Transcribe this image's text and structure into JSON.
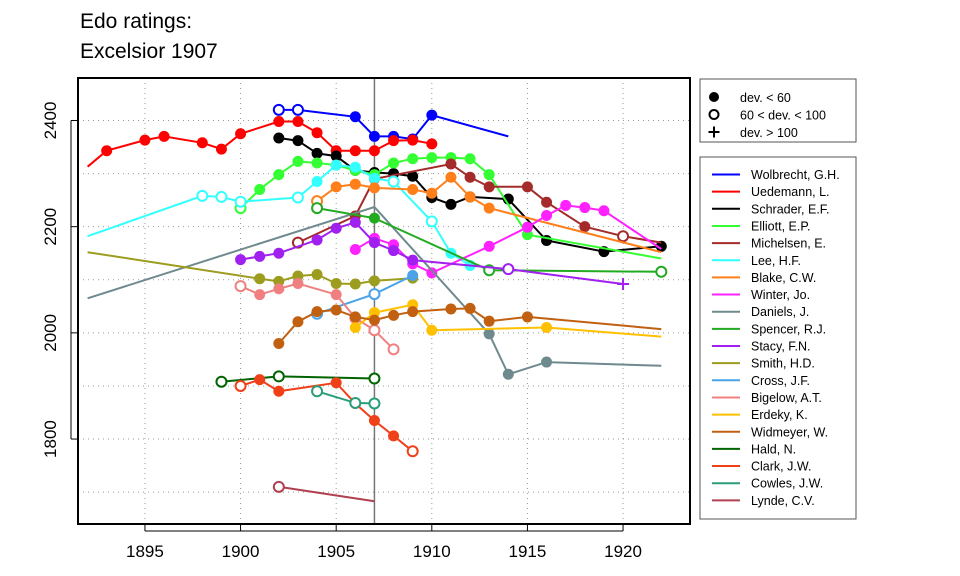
{
  "chart_data": {
    "type": "line",
    "title_lines": [
      "Edo ratings:",
      "Excelsior 1907"
    ],
    "xlabel": "",
    "ylabel": "",
    "xlim": [
      1891.5,
      1923.5
    ],
    "ylim": [
      1640,
      2480
    ],
    "xticks": [
      1895,
      1900,
      1905,
      1910,
      1915,
      1920
    ],
    "yticks": [
      1800,
      2000,
      2200,
      2400
    ],
    "grid": true,
    "vline_x": 1907,
    "symbol_legend": [
      {
        "symbol": "filled",
        "label": "dev. < 60"
      },
      {
        "symbol": "open",
        "label": "60 < dev. < 100"
      },
      {
        "symbol": "plus",
        "label": "dev. > 100"
      }
    ],
    "series": [
      {
        "name": "Wolbrecht, G.H.",
        "color": "#0000ff",
        "points": [
          [
            1902,
            2420,
            "o"
          ],
          [
            1903,
            2420,
            "o"
          ],
          [
            1906,
            2407,
            "f"
          ],
          [
            1907,
            2370,
            "f"
          ],
          [
            1908,
            2370,
            "f"
          ],
          [
            1909,
            2365,
            "f"
          ],
          [
            1910,
            2410,
            "f"
          ],
          [
            1914,
            2370,
            "-"
          ]
        ]
      },
      {
        "name": "Uedemann, L.",
        "color": "#ff0000",
        "points": [
          [
            1892,
            2313,
            "-"
          ],
          [
            1893,
            2343,
            "f"
          ],
          [
            1895,
            2363,
            "f"
          ],
          [
            1896,
            2370,
            "f"
          ],
          [
            1898,
            2358,
            "f"
          ],
          [
            1899,
            2346,
            "f"
          ],
          [
            1900,
            2375,
            "f"
          ],
          [
            1902,
            2398,
            "f"
          ],
          [
            1903,
            2398,
            "f"
          ],
          [
            1904,
            2377,
            "f"
          ],
          [
            1905,
            2343,
            "f"
          ],
          [
            1906,
            2343,
            "f"
          ],
          [
            1907,
            2343,
            "f"
          ],
          [
            1908,
            2362,
            "f"
          ],
          [
            1909,
            2363,
            "f"
          ],
          [
            1910,
            2356,
            "f"
          ]
        ]
      },
      {
        "name": "Schrader, E.F.",
        "color": "#000000",
        "points": [
          [
            1902,
            2367,
            "f"
          ],
          [
            1903,
            2362,
            "f"
          ],
          [
            1904,
            2338,
            "f"
          ],
          [
            1905,
            2333,
            "f"
          ],
          [
            1906,
            2306,
            "f"
          ],
          [
            1907,
            2302,
            "f"
          ],
          [
            1908,
            2300,
            "f"
          ],
          [
            1909,
            2295,
            "f"
          ],
          [
            1910,
            2255,
            "f"
          ],
          [
            1911,
            2242,
            "f"
          ],
          [
            1912,
            2256,
            "f"
          ],
          [
            1914,
            2252,
            "f"
          ],
          [
            1916,
            2174,
            "f"
          ],
          [
            1919,
            2153,
            "f"
          ],
          [
            1922,
            2163,
            "f"
          ]
        ]
      },
      {
        "name": "Elliott, E.P.",
        "color": "#33ff33",
        "points": [
          [
            1900,
            2235,
            "o"
          ],
          [
            1901,
            2270,
            "f"
          ],
          [
            1902,
            2298,
            "f"
          ],
          [
            1903,
            2323,
            "f"
          ],
          [
            1904,
            2320,
            "f"
          ],
          [
            1905,
            2316,
            "f"
          ],
          [
            1906,
            2306,
            "f"
          ],
          [
            1907,
            2298,
            "f"
          ],
          [
            1908,
            2320,
            "f"
          ],
          [
            1909,
            2328,
            "f"
          ],
          [
            1910,
            2330,
            "f"
          ],
          [
            1911,
            2330,
            "f"
          ],
          [
            1912,
            2328,
            "f"
          ],
          [
            1913,
            2298,
            "f"
          ],
          [
            1915,
            2185,
            "f"
          ],
          [
            1922,
            2140,
            "-"
          ]
        ]
      },
      {
        "name": "Michelsen, E.",
        "color": "#a52a2a",
        "points": [
          [
            1903,
            2170,
            "o"
          ],
          [
            1906,
            2220,
            "f"
          ],
          [
            1907,
            2290,
            "f"
          ],
          [
            1911,
            2318,
            "f"
          ],
          [
            1912,
            2293,
            "f"
          ],
          [
            1913,
            2275,
            "f"
          ],
          [
            1915,
            2275,
            "f"
          ],
          [
            1916,
            2246,
            "f"
          ],
          [
            1918,
            2200,
            "f"
          ],
          [
            1920,
            2182,
            "o"
          ],
          [
            1922,
            2170,
            "-"
          ]
        ]
      },
      {
        "name": "Lee, H.F.",
        "color": "#33ffff",
        "points": [
          [
            1892,
            2182,
            "-"
          ],
          [
            1898,
            2258,
            "o"
          ],
          [
            1899,
            2256,
            "o"
          ],
          [
            1900,
            2247,
            "o"
          ],
          [
            1903,
            2255,
            "o"
          ],
          [
            1904,
            2285,
            "f"
          ],
          [
            1905,
            2316,
            "f"
          ],
          [
            1906,
            2312,
            "f"
          ],
          [
            1907,
            2291,
            "f"
          ],
          [
            1908,
            2285,
            "o"
          ],
          [
            1910,
            2210,
            "o"
          ],
          [
            1911,
            2150,
            "f"
          ],
          [
            1912,
            2127,
            "f"
          ]
        ]
      },
      {
        "name": "Blake, C.W.",
        "color": "#ff7f1a",
        "points": [
          [
            1904,
            2248,
            "o"
          ],
          [
            1905,
            2275,
            "f"
          ],
          [
            1906,
            2280,
            "f"
          ],
          [
            1907,
            2273,
            "f"
          ],
          [
            1909,
            2270,
            "f"
          ],
          [
            1910,
            2263,
            "f"
          ],
          [
            1911,
            2293,
            "f"
          ],
          [
            1912,
            2256,
            "f"
          ],
          [
            1913,
            2235,
            "f"
          ],
          [
            1922,
            2152,
            "-"
          ]
        ]
      },
      {
        "name": "Winter, Jo.",
        "color": "#ff22ff",
        "points": [
          [
            1906,
            2157,
            "f"
          ],
          [
            1907,
            2178,
            "f"
          ],
          [
            1908,
            2166,
            "f"
          ],
          [
            1909,
            2130,
            "f"
          ],
          [
            1910,
            2113,
            "f"
          ],
          [
            1913,
            2163,
            "f"
          ],
          [
            1915,
            2199,
            "f"
          ],
          [
            1916,
            2221,
            "f"
          ],
          [
            1917,
            2240,
            "f"
          ],
          [
            1918,
            2236,
            "f"
          ],
          [
            1919,
            2230,
            "f"
          ],
          [
            1922,
            2158,
            "-"
          ]
        ]
      },
      {
        "name": "Daniels, J.",
        "color": "#6f8a8e",
        "points": [
          [
            1892,
            2065,
            "-"
          ],
          [
            1907,
            2237,
            "-"
          ],
          [
            1913,
            1998,
            "f"
          ],
          [
            1914,
            1922,
            "f"
          ],
          [
            1916,
            1945,
            "f"
          ],
          [
            1922,
            1938,
            "-"
          ]
        ]
      },
      {
        "name": "Spencer, R.J.",
        "color": "#22aa22",
        "points": [
          [
            1904,
            2235,
            "o"
          ],
          [
            1907,
            2216,
            "f"
          ],
          [
            1913,
            2118,
            "o"
          ],
          [
            1922,
            2115,
            "o"
          ]
        ]
      },
      {
        "name": "Stacy, F.N.",
        "color": "#a020f0",
        "points": [
          [
            1900,
            2138,
            "f"
          ],
          [
            1901,
            2144,
            "f"
          ],
          [
            1902,
            2150,
            "f"
          ],
          [
            1904,
            2175,
            "f"
          ],
          [
            1905,
            2197,
            "f"
          ],
          [
            1906,
            2208,
            "f"
          ],
          [
            1907,
            2170,
            "f"
          ],
          [
            1908,
            2155,
            "f"
          ],
          [
            1909,
            2137,
            "f"
          ],
          [
            1914,
            2120,
            "o"
          ],
          [
            1920,
            2092,
            "+"
          ]
        ]
      },
      {
        "name": "Smith, H.D.",
        "color": "#9c9c1e",
        "points": [
          [
            1892,
            2152,
            "-"
          ],
          [
            1901,
            2102,
            "f"
          ],
          [
            1902,
            2097,
            "f"
          ],
          [
            1903,
            2107,
            "f"
          ],
          [
            1904,
            2110,
            "f"
          ],
          [
            1905,
            2093,
            "f"
          ],
          [
            1906,
            2092,
            "f"
          ],
          [
            1907,
            2098,
            "f"
          ],
          [
            1909,
            2103,
            "f"
          ]
        ]
      },
      {
        "name": "Cross, J.F.",
        "color": "#4aa3e8",
        "points": [
          [
            1904,
            2036,
            "o"
          ],
          [
            1907,
            2073,
            "o"
          ],
          [
            1909,
            2108,
            "f"
          ]
        ]
      },
      {
        "name": "Bigelow, A.T.",
        "color": "#f08080",
        "points": [
          [
            1900,
            2088,
            "o"
          ],
          [
            1901,
            2072,
            "f"
          ],
          [
            1902,
            2083,
            "f"
          ],
          [
            1903,
            2093,
            "f"
          ],
          [
            1905,
            2072,
            "f"
          ],
          [
            1906,
            2028,
            "o"
          ],
          [
            1907,
            2005,
            "o"
          ],
          [
            1908,
            1969,
            "o"
          ]
        ]
      },
      {
        "name": "Erdeky, K.",
        "color": "#ffc000",
        "points": [
          [
            1906,
            2010,
            "f"
          ],
          [
            1907,
            2038,
            "f"
          ],
          [
            1909,
            2053,
            "f"
          ],
          [
            1910,
            2005,
            "f"
          ],
          [
            1916,
            2010,
            "f"
          ],
          [
            1922,
            1993,
            "-"
          ]
        ]
      },
      {
        "name": "Widmeyer, W.",
        "color": "#c06010",
        "points": [
          [
            1902,
            1980,
            "f"
          ],
          [
            1903,
            2021,
            "f"
          ],
          [
            1904,
            2040,
            "f"
          ],
          [
            1905,
            2043,
            "f"
          ],
          [
            1906,
            2030,
            "f"
          ],
          [
            1907,
            2024,
            "f"
          ],
          [
            1908,
            2033,
            "f"
          ],
          [
            1909,
            2040,
            "f"
          ],
          [
            1911,
            2045,
            "f"
          ],
          [
            1912,
            2046,
            "f"
          ],
          [
            1913,
            2022,
            "f"
          ],
          [
            1915,
            2030,
            "f"
          ],
          [
            1922,
            2007,
            "-"
          ]
        ]
      },
      {
        "name": "Hald, N.",
        "color": "#006400",
        "points": [
          [
            1899,
            1908,
            "o"
          ],
          [
            1902,
            1918,
            "o"
          ],
          [
            1907,
            1914,
            "o"
          ]
        ]
      },
      {
        "name": "Clark, J.W.",
        "color": "#f04018",
        "points": [
          [
            1900,
            1900,
            "o"
          ],
          [
            1901,
            1912,
            "f"
          ],
          [
            1902,
            1890,
            "f"
          ],
          [
            1905,
            1906,
            "f"
          ],
          [
            1906,
            1867,
            "f"
          ],
          [
            1907,
            1835,
            "f"
          ],
          [
            1908,
            1806,
            "f"
          ],
          [
            1909,
            1777,
            "o"
          ]
        ]
      },
      {
        "name": "Cowles, J.W.",
        "color": "#2a9d7a",
        "points": [
          [
            1904,
            1890,
            "o"
          ],
          [
            1906,
            1868,
            "o"
          ],
          [
            1907,
            1867,
            "o"
          ]
        ]
      },
      {
        "name": "Lynde, C.V.",
        "color": "#b04050",
        "points": [
          [
            1902,
            1710,
            "o"
          ],
          [
            1907,
            1683,
            "-"
          ]
        ]
      }
    ]
  }
}
